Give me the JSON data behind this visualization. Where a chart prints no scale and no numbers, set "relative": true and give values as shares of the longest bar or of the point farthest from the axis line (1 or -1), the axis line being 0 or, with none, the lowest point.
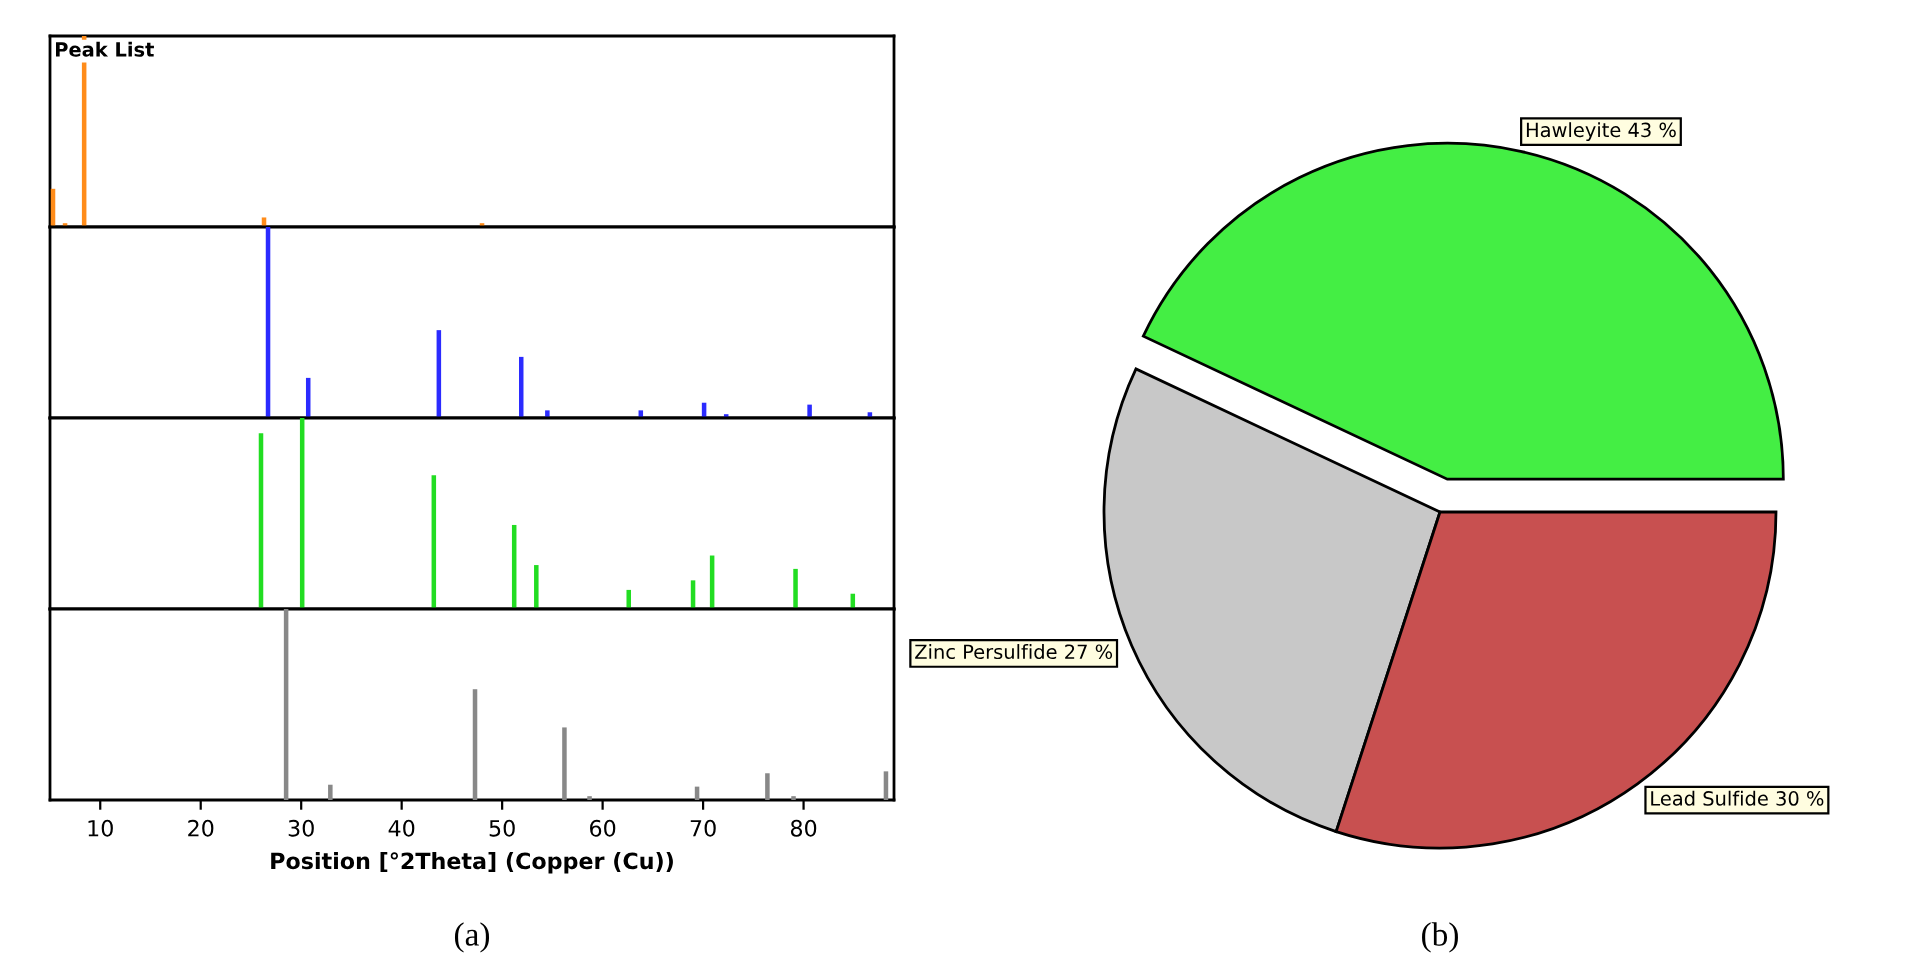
{
  "chart_data": [
    {
      "type": "bar",
      "relative": true,
      "title": "Peak List",
      "x": [
        5.3,
        6.5,
        8.4,
        26.3,
        48.0
      ],
      "values": [
        0.2,
        0.02,
        1.0,
        0.05,
        0.02
      ],
      "color": "#ff8c1a",
      "xlim": [
        5,
        89
      ],
      "tick_labels": false,
      "annotations": [
        "(a)"
      ]
    },
    {
      "type": "bar",
      "relative": true,
      "x": [
        26.7,
        30.7,
        43.7,
        51.9,
        54.5,
        63.8,
        70.1,
        72.3,
        80.6,
        86.6
      ],
      "values": [
        1.0,
        0.21,
        0.46,
        0.32,
        0.04,
        0.04,
        0.08,
        0.02,
        0.07,
        0.03
      ],
      "color": "#2b2bff",
      "xlim": [
        5,
        89
      ],
      "tick_labels": false
    },
    {
      "type": "bar",
      "relative": true,
      "x": [
        26.0,
        30.1,
        43.2,
        51.2,
        53.4,
        62.6,
        69.0,
        70.9,
        79.2,
        84.9
      ],
      "values": [
        0.92,
        1.0,
        0.7,
        0.44,
        0.23,
        0.1,
        0.15,
        0.28,
        0.21,
        0.08
      ],
      "color": "#22dd22",
      "xlim": [
        5,
        89
      ],
      "tick_labels": false
    },
    {
      "type": "bar",
      "relative": true,
      "x": [
        28.5,
        32.9,
        47.3,
        56.2,
        58.7,
        69.4,
        76.4,
        79.0,
        88.2
      ],
      "values": [
        1.0,
        0.08,
        0.58,
        0.38,
        0.02,
        0.07,
        0.14,
        0.02,
        0.15
      ],
      "color": "#888888",
      "xlim": [
        5,
        89
      ],
      "xticks": [
        10,
        20,
        30,
        40,
        50,
        60,
        70,
        80
      ],
      "xlabel": "Position [°2Theta] (Copper (Cu))",
      "tick_labels": "x"
    },
    {
      "type": "pie",
      "categories": [
        "Hawleyite",
        "Zinc Persulfide",
        "Lead Sulfide"
      ],
      "values": [
        43,
        27,
        30
      ],
      "value_labels": [
        "43 %",
        "27 %",
        "30 %"
      ],
      "colors": [
        "#44ee44",
        "#c8c8c8",
        "#c85050"
      ],
      "annotations": [
        "(b)"
      ]
    }
  ]
}
